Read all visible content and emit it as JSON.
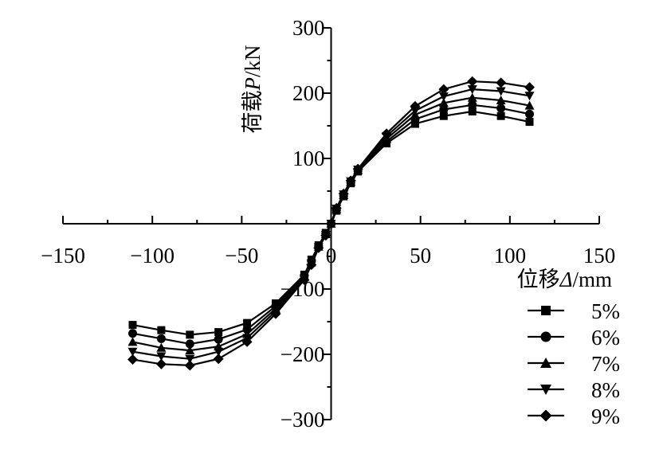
{
  "chart_data": {
    "type": "line",
    "xlabel_prefix": "位移",
    "xlabel_symbol": "Δ",
    "xlabel_unit": "/mm",
    "ylabel_prefix": "荷载",
    "ylabel_symbol": "P",
    "ylabel_unit": "/kN",
    "xlim": [
      -150,
      150
    ],
    "ylim": [
      -300,
      300
    ],
    "xticks": [
      -150,
      -100,
      -50,
      0,
      50,
      100,
      150
    ],
    "yticks": [
      -300,
      -200,
      -100,
      0,
      100,
      200,
      300
    ],
    "xtick_labels": [
      "−150",
      "−100",
      "−50",
      "0",
      "50",
      "100",
      "150"
    ],
    "ytick_labels": [
      "−300",
      "−200",
      "−100",
      "0",
      "100",
      "200",
      "300"
    ],
    "legend_position": "bottom-right",
    "x": [
      -111,
      -95,
      -79,
      -63,
      -47,
      -31,
      -15,
      -11,
      -7,
      -3,
      0,
      3,
      7,
      11,
      15,
      31,
      47,
      63,
      79,
      95,
      111
    ],
    "series": [
      {
        "name": "5%",
        "marker": "square",
        "values": [
          -155,
          -163,
          -170,
          -166,
          -152,
          -122,
          -78,
          -55,
          -33,
          -14,
          0,
          20,
          42,
          62,
          80,
          123,
          153,
          165,
          172,
          165,
          156
        ]
      },
      {
        "name": "6%",
        "marker": "circle",
        "values": [
          -168,
          -176,
          -184,
          -177,
          -162,
          -126,
          -80,
          -57,
          -34,
          -15,
          0,
          21,
          43,
          63,
          81,
          126,
          160,
          175,
          182,
          177,
          168
        ]
      },
      {
        "name": "7%",
        "marker": "triangle-up",
        "values": [
          -181,
          -190,
          -194,
          -188,
          -169,
          -130,
          -82,
          -59,
          -35,
          -16,
          0,
          22,
          44,
          64,
          82,
          130,
          167,
          185,
          193,
          189,
          181
        ]
      },
      {
        "name": "8%",
        "marker": "triangle-down",
        "values": [
          -196,
          -203,
          -207,
          -196,
          -175,
          -134,
          -84,
          -61,
          -36,
          -17,
          0,
          23,
          45,
          65,
          83,
          134,
          173,
          195,
          206,
          203,
          196
        ]
      },
      {
        "name": "9%",
        "marker": "diamond",
        "values": [
          -208,
          -215,
          -217,
          -207,
          -181,
          -138,
          -86,
          -63,
          -37,
          -18,
          0,
          24,
          46,
          66,
          84,
          138,
          180,
          206,
          218,
          216,
          209
        ]
      }
    ]
  }
}
